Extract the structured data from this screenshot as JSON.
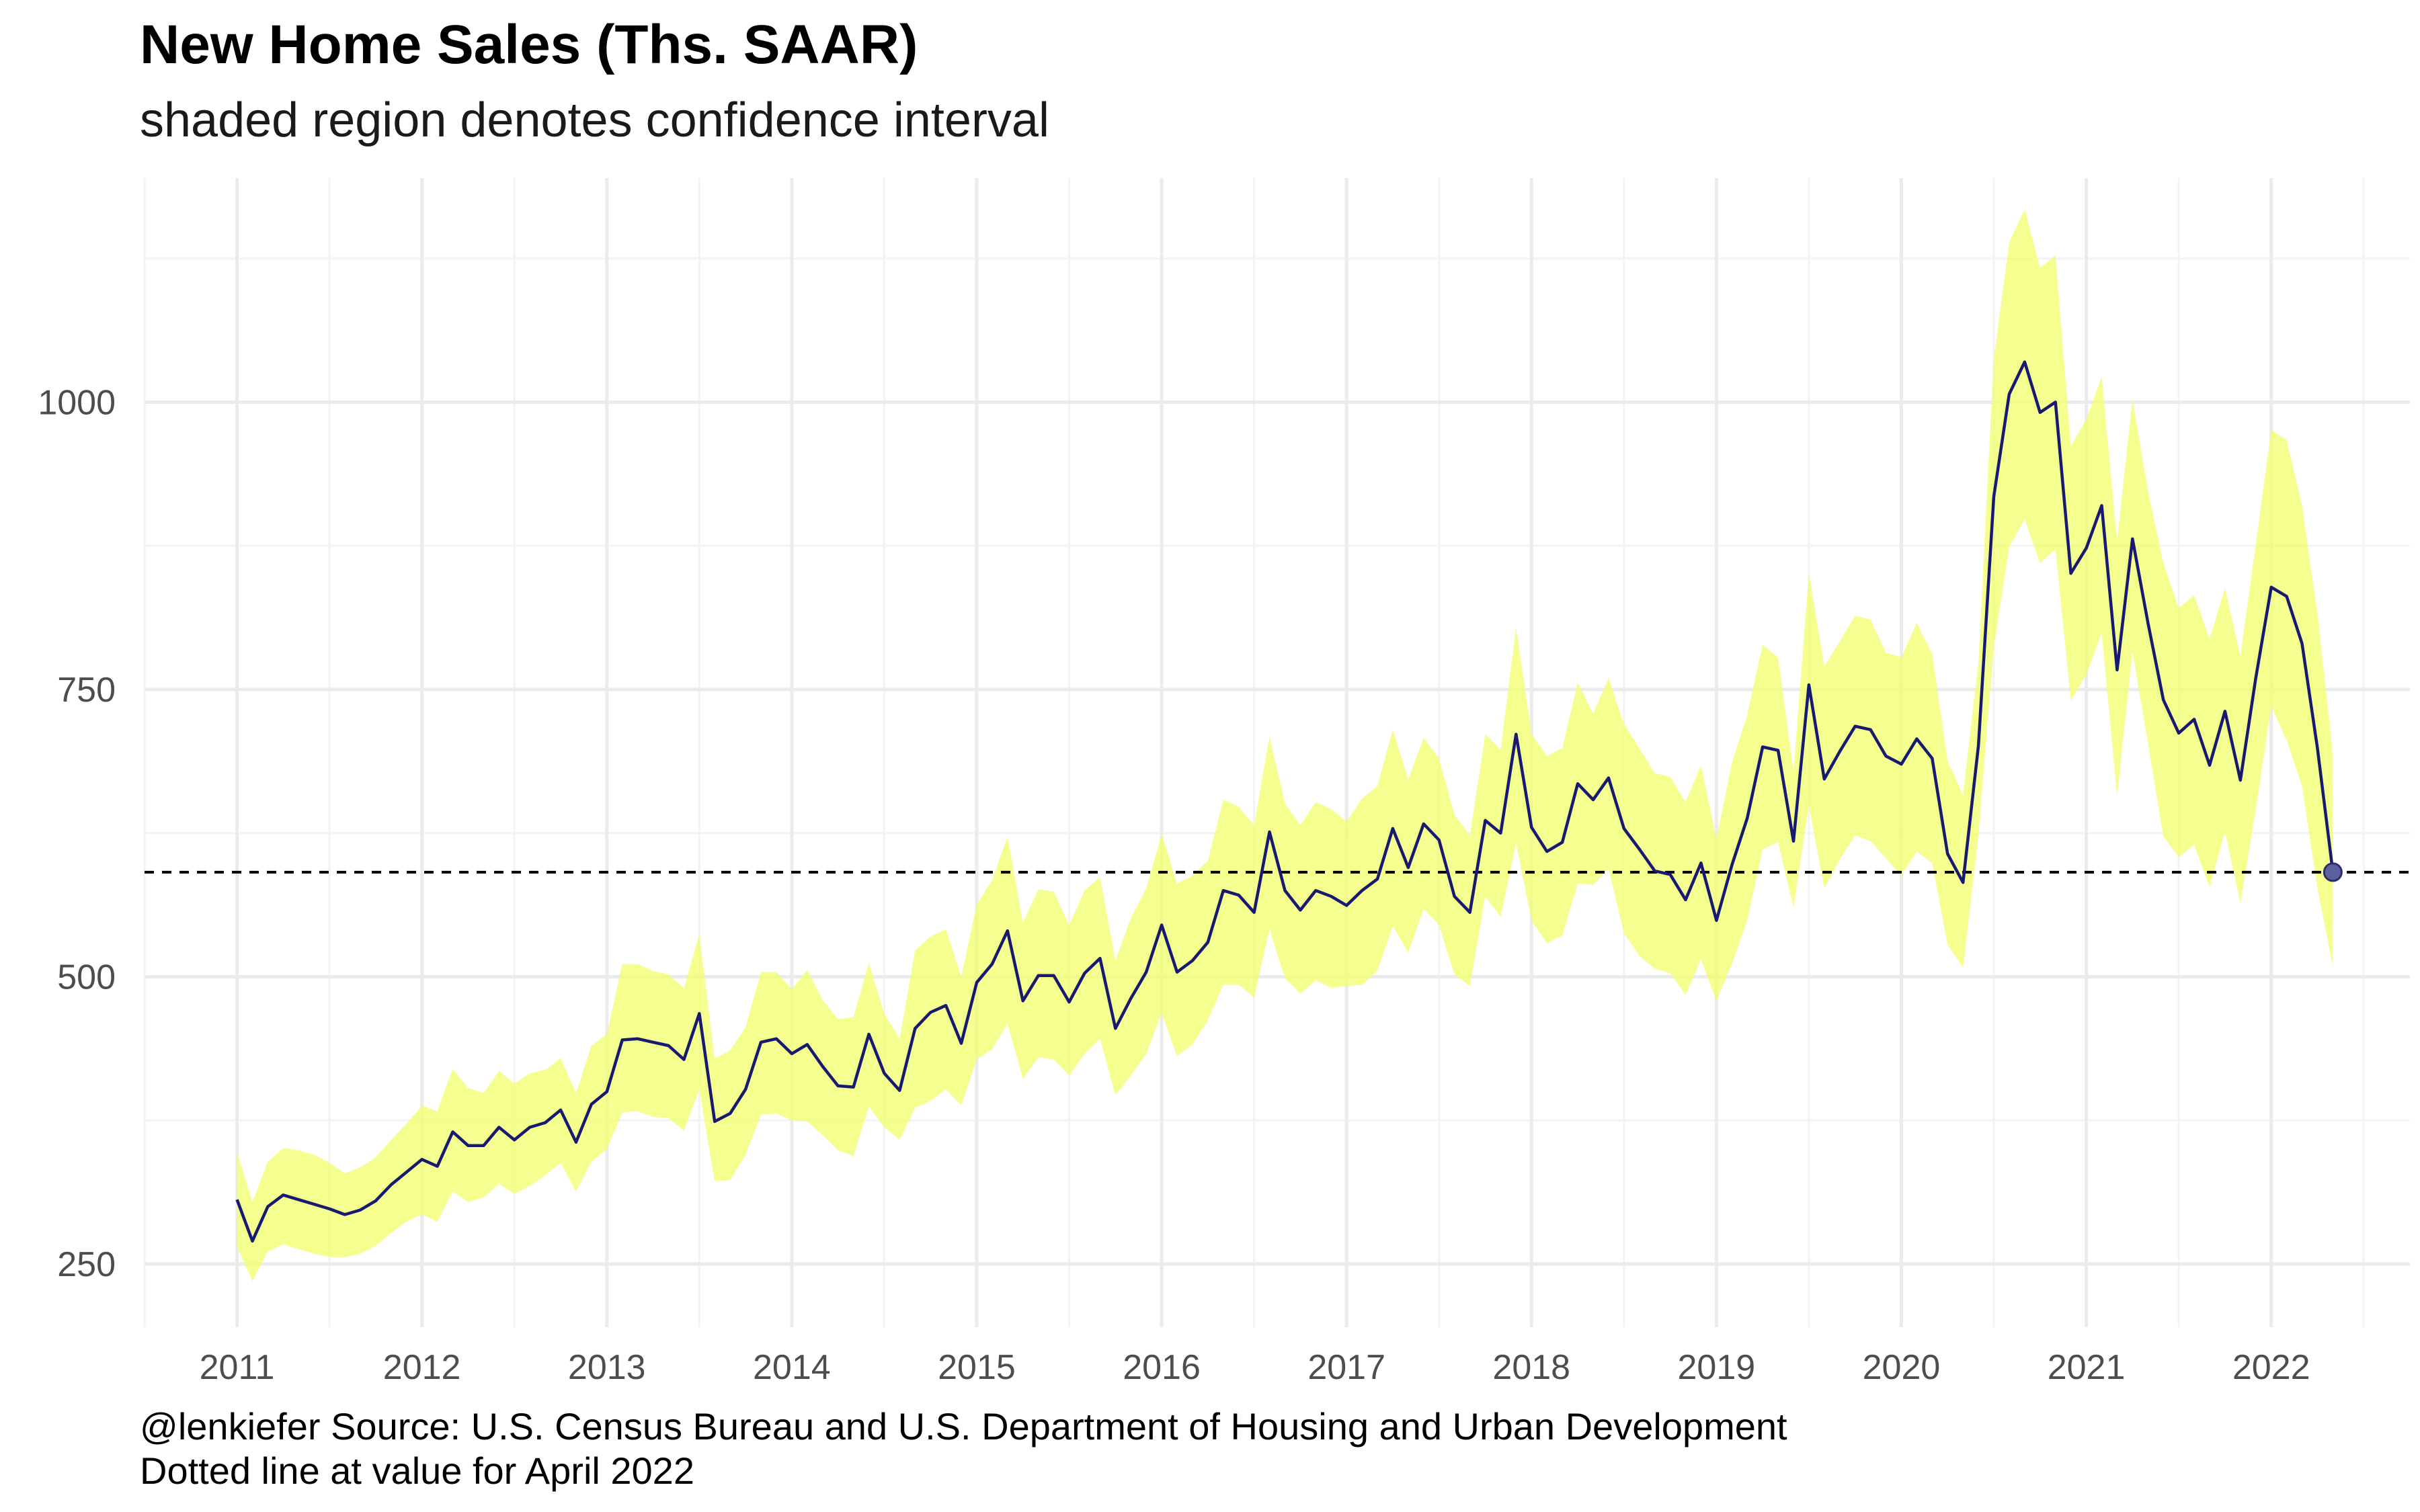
{
  "chart_data": {
    "type": "line",
    "title": "New Home Sales (Ths. SAAR)",
    "subtitle": "shaded region denotes confidence interval",
    "caption_lines": [
      "@lenkiefer Source: U.S. Census Bureau and U.S. Department of Housing and Urban Development",
      "Dotted line at value for April 2022"
    ],
    "xlabel": "",
    "ylabel": "",
    "x_axis": {
      "type": "date",
      "range": [
        "2010-07-01",
        "2022-10-01"
      ],
      "ticks": [
        "2011",
        "2012",
        "2013",
        "2014",
        "2015",
        "2016",
        "2017",
        "2018",
        "2019",
        "2020",
        "2021",
        "2022"
      ]
    },
    "y_axis": {
      "range": [
        195,
        1195
      ],
      "ticks": [
        250,
        500,
        750,
        1000
      ],
      "tick_labels": [
        "250",
        "500",
        "750",
        "1000"
      ]
    },
    "grid": true,
    "reference_line": {
      "value": 591,
      "style": "dashed",
      "color": "#000000"
    },
    "colors": {
      "line": "#191970",
      "ribbon": "#f0ff6a",
      "endpoint": "#5b5f9e"
    },
    "series": [
      {
        "start": "2011-01",
        "frequency": "monthly",
        "values": [
          306,
          270,
          300,
          310,
          306,
          302,
          298,
          293,
          297,
          305,
          319,
          330,
          341,
          335,
          365,
          353,
          353,
          369,
          358,
          369,
          373,
          384,
          356,
          389,
          400,
          445,
          446,
          443,
          440,
          428,
          468,
          374,
          381,
          402,
          443,
          446,
          433,
          441,
          422,
          405,
          404,
          450,
          416,
          401,
          455,
          469,
          475,
          442,
          495,
          511,
          540,
          479,
          501,
          501,
          478,
          503,
          516,
          455,
          481,
          504,
          545,
          504,
          514,
          530,
          575,
          571,
          556,
          626,
          575,
          558,
          575,
          570,
          562,
          575,
          585,
          629,
          595,
          633,
          619,
          570,
          556,
          636,
          625,
          711,
          630,
          609,
          617,
          668,
          654,
          673,
          629,
          611,
          592,
          589,
          567,
          599,
          549,
          597,
          638,
          700,
          697,
          618,
          754,
          672,
          696,
          718,
          715,
          692,
          685,
          707,
          690,
          607,
          582,
          701,
          918,
          1007,
          1035,
          991,
          1000,
          851,
          873,
          910,
          767,
          881,
          808,
          741,
          712,
          724,
          684,
          731,
          671,
          760,
          839,
          831,
          790,
          699,
          591
        ]
      }
    ],
    "confidence_interval": {
      "lower": [
        265,
        235,
        261,
        267,
        263,
        259,
        256,
        256,
        259,
        266,
        277,
        287,
        293,
        287,
        313,
        304,
        308,
        320,
        311,
        318,
        327,
        338,
        313,
        339,
        350,
        382,
        383,
        378,
        377,
        366,
        402,
        322,
        323,
        345,
        380,
        381,
        375,
        374,
        362,
        349,
        344,
        387,
        369,
        358,
        386,
        392,
        402,
        388,
        428,
        437,
        459,
        411,
        430,
        428,
        414,
        433,
        446,
        397,
        414,
        433,
        468,
        431,
        441,
        462,
        493,
        493,
        482,
        541,
        499,
        485,
        497,
        490,
        492,
        493,
        505,
        544,
        521,
        559,
        545,
        502,
        492,
        570,
        552,
        616,
        549,
        529,
        536,
        581,
        580,
        594,
        538,
        518,
        507,
        503,
        484,
        515,
        479,
        511,
        549,
        611,
        617,
        560,
        649,
        577,
        602,
        623,
        618,
        603,
        588,
        609,
        599,
        528,
        508,
        623,
        787,
        874,
        898,
        860,
        872,
        740,
        763,
        799,
        657,
        783,
        703,
        622,
        604,
        615,
        578,
        626,
        564,
        646,
        735,
        706,
        666,
        577,
        509
      ],
      "upper": [
        348,
        304,
        339,
        351,
        349,
        345,
        338,
        329,
        334,
        343,
        358,
        372,
        388,
        383,
        420,
        403,
        399,
        418,
        407,
        416,
        419,
        429,
        399,
        440,
        450,
        511,
        511,
        505,
        502,
        490,
        537,
        429,
        436,
        456,
        504,
        504,
        489,
        506,
        480,
        463,
        465,
        512,
        468,
        446,
        523,
        535,
        541,
        500,
        563,
        584,
        622,
        547,
        576,
        574,
        545,
        575,
        587,
        514,
        551,
        577,
        624,
        581,
        588,
        601,
        654,
        648,
        632,
        709,
        651,
        632,
        652,
        646,
        635,
        655,
        666,
        715,
        672,
        708,
        690,
        641,
        623,
        711,
        698,
        804,
        711,
        692,
        699,
        756,
        729,
        760,
        720,
        699,
        677,
        674,
        652,
        684,
        620,
        686,
        728,
        789,
        778,
        679,
        851,
        770,
        792,
        814,
        811,
        782,
        778,
        808,
        781,
        688,
        658,
        774,
        1038,
        1139,
        1168,
        1117,
        1128,
        962,
        985,
        1022,
        879,
        1003,
        923,
        860,
        821,
        832,
        794,
        838,
        779,
        876,
        976,
        967,
        910,
        816,
        694
      ]
    }
  }
}
